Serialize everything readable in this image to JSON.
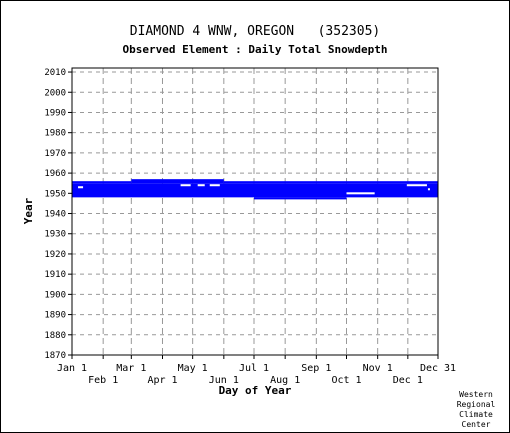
{
  "chart_data": {
    "type": "scatter",
    "title": "DIAMOND 4 WNW, OREGON   (352305)",
    "subtitle": "Observed Element : Daily Total Snowdepth",
    "xlabel": "Day of Year",
    "ylabel": "Year",
    "xlim": [
      1,
      365
    ],
    "ylim": [
      1870,
      2012
    ],
    "yticks": [
      1870,
      1880,
      1890,
      1900,
      1910,
      1920,
      1930,
      1940,
      1950,
      1960,
      1970,
      1980,
      1990,
      2000,
      2010
    ],
    "xticks": [
      {
        "label": "Jan 1",
        "day": 1,
        "row": 0
      },
      {
        "label": "Feb 1",
        "day": 32,
        "row": 1
      },
      {
        "label": "Mar 1",
        "day": 60,
        "row": 0
      },
      {
        "label": "Apr 1",
        "day": 91,
        "row": 1
      },
      {
        "label": "May 1",
        "day": 121,
        "row": 0
      },
      {
        "label": "Jun 1",
        "day": 152,
        "row": 1
      },
      {
        "label": "Jul 1",
        "day": 182,
        "row": 0
      },
      {
        "label": "Aug 1",
        "day": 213,
        "row": 1
      },
      {
        "label": "Sep 1",
        "day": 244,
        "row": 0
      },
      {
        "label": "Oct 1",
        "day": 274,
        "row": 1
      },
      {
        "label": "Nov 1",
        "day": 305,
        "row": 0
      },
      {
        "label": "Dec 1",
        "day": 335,
        "row": 1
      },
      {
        "label": "Dec 31",
        "day": 365,
        "row": 0
      }
    ],
    "grid": true,
    "color": "#0000ff",
    "observed_blocks": [
      {
        "day_start": 1,
        "day_end": 365,
        "year_start": 1948,
        "year_end": 1955
      },
      {
        "day_start": 1,
        "day_end": 60,
        "year_start": 1955,
        "year_end": 1956
      },
      {
        "day_start": 60,
        "day_end": 152,
        "year_start": 1955,
        "year_end": 1957
      },
      {
        "day_start": 152,
        "day_end": 365,
        "year_start": 1955,
        "year_end": 1956
      },
      {
        "day_start": 182,
        "day_end": 274,
        "year_start": 1947,
        "year_end": 1948
      }
    ],
    "gaps": [
      {
        "day_start": 7,
        "day_end": 12,
        "year": 1953
      },
      {
        "day_start": 109,
        "day_end": 119,
        "year": 1954
      },
      {
        "day_start": 126,
        "day_end": 133,
        "year": 1954
      },
      {
        "day_start": 138,
        "day_end": 148,
        "year": 1954
      },
      {
        "day_start": 274,
        "day_end": 302,
        "year": 1950
      },
      {
        "day_start": 334,
        "day_end": 354,
        "year": 1954
      },
      {
        "day_start": 355,
        "day_end": 357,
        "year": 1952
      }
    ]
  },
  "credit": [
    "Western",
    "Regional",
    "Climate",
    "Center"
  ]
}
